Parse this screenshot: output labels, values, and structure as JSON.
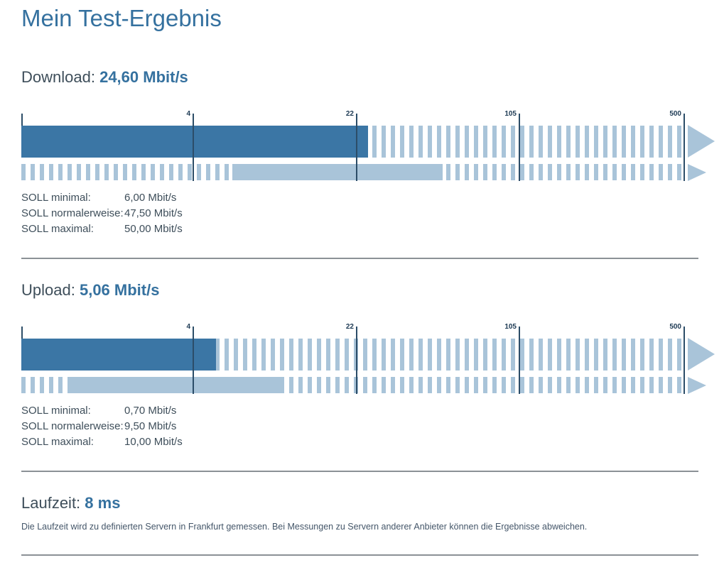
{
  "page": {
    "title": "Mein Test-Ergebnis"
  },
  "colors": {
    "bar_dark": "#3b76a5",
    "bar_light": "#a9c4d9",
    "tick_line": "#2c4d68",
    "heading_blue": "#35719f",
    "text_dark": "#3e4e5a",
    "divider_gray": "#8b9196"
  },
  "sections": {
    "download": {
      "label": "Download:",
      "value": "24,60 Mbit/s",
      "soll_rows": [
        {
          "label": "SOLL minimal:",
          "value": "6,00 Mbit/s"
        },
        {
          "label": "SOLL normalerweise:",
          "value": "47,50 Mbit/s"
        },
        {
          "label": "SOLL maximal:",
          "value": "50,00 Mbit/s"
        }
      ]
    },
    "upload": {
      "label": "Upload:",
      "value": "5,06 Mbit/s",
      "soll_rows": [
        {
          "label": "SOLL minimal:",
          "value": "0,70 Mbit/s"
        },
        {
          "label": "SOLL normalerweise:",
          "value": "9,50 Mbit/s"
        },
        {
          "label": "SOLL maximal:",
          "value": "10,00 Mbit/s"
        }
      ]
    },
    "latency": {
      "label": "Laufzeit:",
      "value": "8 ms",
      "note": "Die Laufzeit wird zu definierten Servern in Frankfurt gemessen. Bei Messungen zu Servern anderer Anbieter können die Ergebnisse abweichen."
    }
  },
  "chart_data": [
    {
      "id": "download",
      "type": "bar",
      "title": "Download",
      "unit": "Mbit/s",
      "scale": "log",
      "axis_ticks": [
        4,
        22,
        105,
        500
      ],
      "axis_max": 500,
      "measured": 24.6,
      "soll_minimal": 6.0,
      "soll_normalerweise": 47.5,
      "soll_maximal": 50.0
    },
    {
      "id": "upload",
      "type": "bar",
      "title": "Upload",
      "unit": "Mbit/s",
      "scale": "log",
      "axis_ticks": [
        4,
        22,
        105,
        500
      ],
      "axis_max": 500,
      "measured": 5.06,
      "soll_minimal": 0.7,
      "soll_normalerweise": 9.5,
      "soll_maximal": 10.0
    }
  ]
}
